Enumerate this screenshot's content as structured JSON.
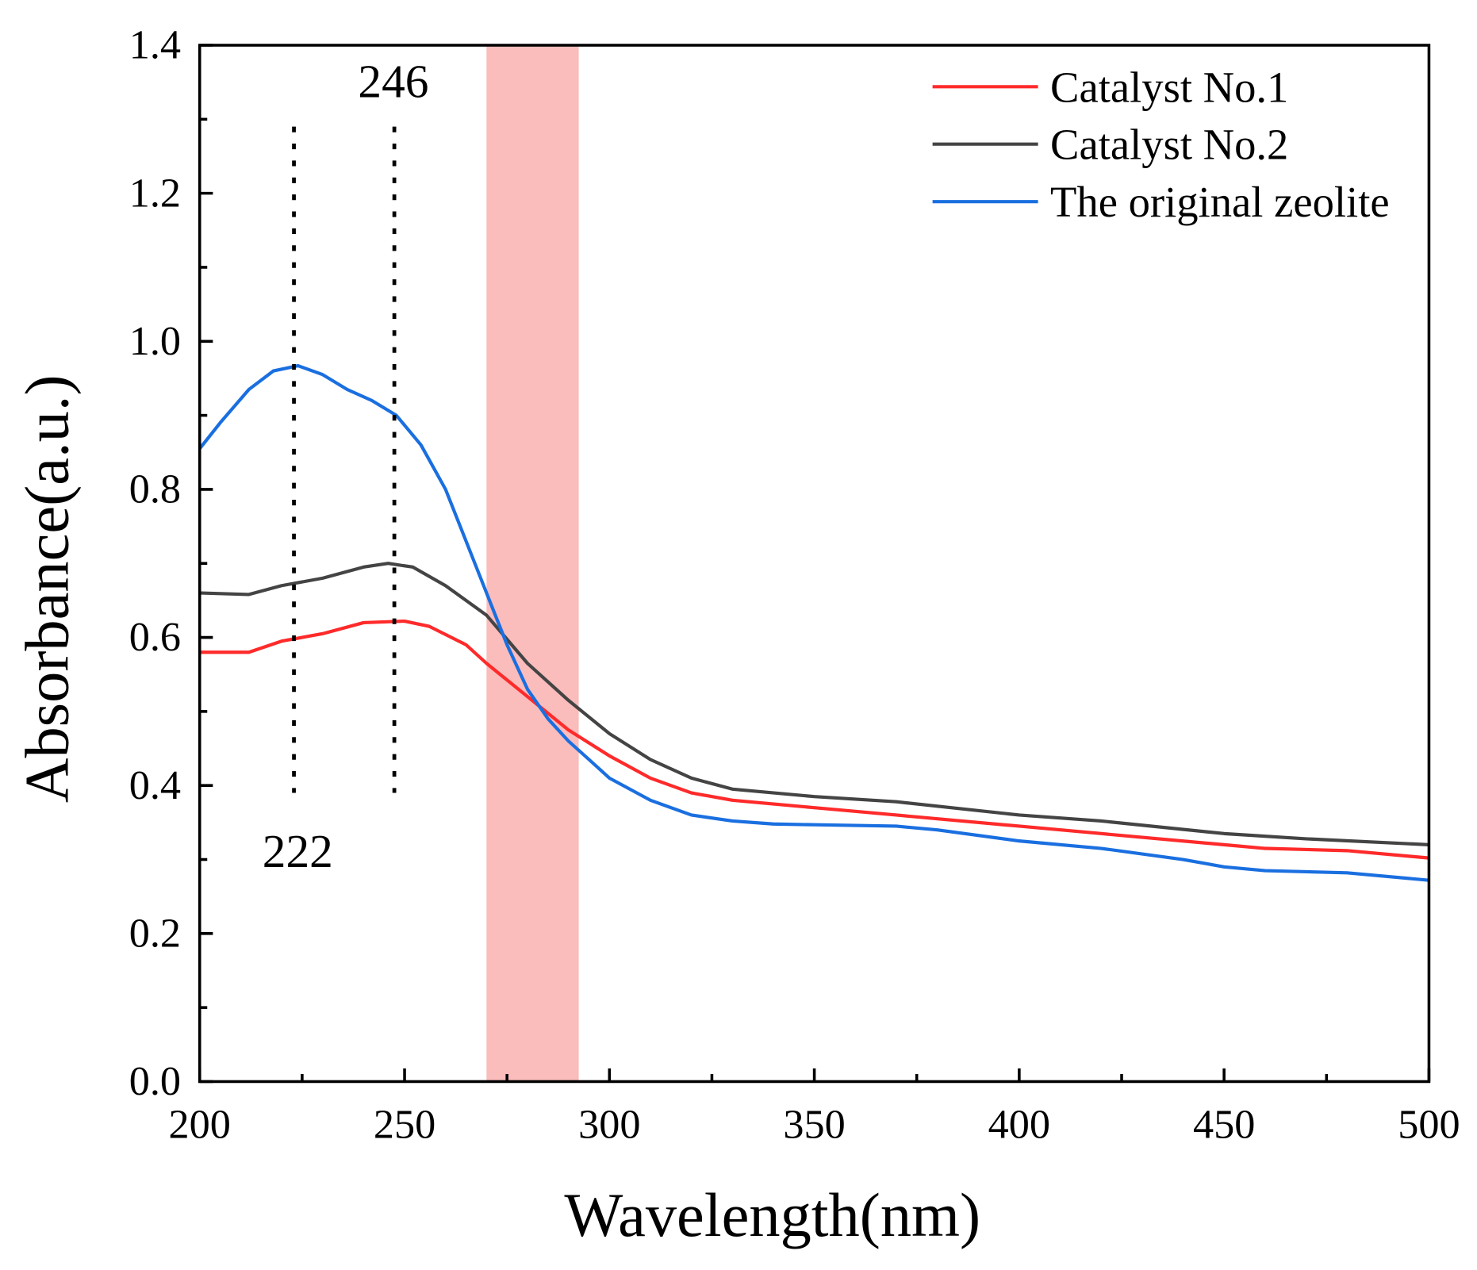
{
  "chart_data": {
    "type": "line",
    "title": "",
    "xlabel": "Wavelength(nm)",
    "ylabel": "Absorbance(a.u.)",
    "xlim": [
      200,
      500
    ],
    "ylim": [
      0,
      1.4
    ],
    "xticks": [
      "200",
      "250",
      "300",
      "350",
      "400",
      "450",
      "500"
    ],
    "yticks": [
      "0.0",
      "0.2",
      "0.4",
      "0.6",
      "0.8",
      "1.0",
      "1.2",
      "1.4"
    ],
    "grid": false,
    "legend_position": "top-right",
    "highlight_band": {
      "x": [
        270,
        292.5
      ],
      "color": "#fbbcbc"
    },
    "annotations": [
      {
        "text": "222",
        "x": 223,
        "line_y": [
          0.39,
          1.29
        ]
      },
      {
        "text": "246",
        "x": 247.5,
        "line_y": [
          0.39,
          1.29
        ]
      }
    ],
    "series": [
      {
        "name": "Catalyst No.1",
        "color": "#ff2a2a",
        "x": [
          200,
          212,
          220,
          230,
          240,
          250,
          256,
          265,
          270,
          280,
          290,
          300,
          310,
          320,
          330,
          350,
          370,
          400,
          420,
          450,
          460,
          480,
          500
        ],
        "y": [
          0.58,
          0.58,
          0.595,
          0.605,
          0.62,
          0.622,
          0.615,
          0.59,
          0.565,
          0.52,
          0.475,
          0.44,
          0.41,
          0.39,
          0.38,
          0.37,
          0.36,
          0.345,
          0.335,
          0.32,
          0.315,
          0.312,
          0.302
        ]
      },
      {
        "name": "Catalyst No.2",
        "color": "#444444",
        "x": [
          200,
          212,
          220,
          230,
          240,
          246,
          252,
          260,
          270,
          280,
          290,
          300,
          310,
          320,
          330,
          350,
          370,
          400,
          420,
          450,
          470,
          500
        ],
        "y": [
          0.66,
          0.658,
          0.67,
          0.68,
          0.695,
          0.7,
          0.695,
          0.67,
          0.63,
          0.565,
          0.515,
          0.47,
          0.435,
          0.41,
          0.395,
          0.385,
          0.378,
          0.36,
          0.352,
          0.335,
          0.328,
          0.32
        ]
      },
      {
        "name": "The original zeolite",
        "color": "#1a6fe0",
        "x": [
          200,
          205,
          212,
          218,
          224,
          230,
          236,
          242,
          248,
          254,
          260,
          265,
          270,
          275,
          280,
          285,
          290,
          295,
          300,
          310,
          320,
          330,
          340,
          350,
          370,
          380,
          400,
          420,
          440,
          450,
          460,
          480,
          500
        ],
        "y": [
          0.855,
          0.89,
          0.935,
          0.96,
          0.967,
          0.955,
          0.935,
          0.92,
          0.9,
          0.86,
          0.8,
          0.73,
          0.66,
          0.59,
          0.53,
          0.49,
          0.46,
          0.435,
          0.41,
          0.38,
          0.36,
          0.352,
          0.348,
          0.347,
          0.345,
          0.34,
          0.325,
          0.315,
          0.3,
          0.29,
          0.285,
          0.282,
          0.272
        ]
      }
    ]
  }
}
